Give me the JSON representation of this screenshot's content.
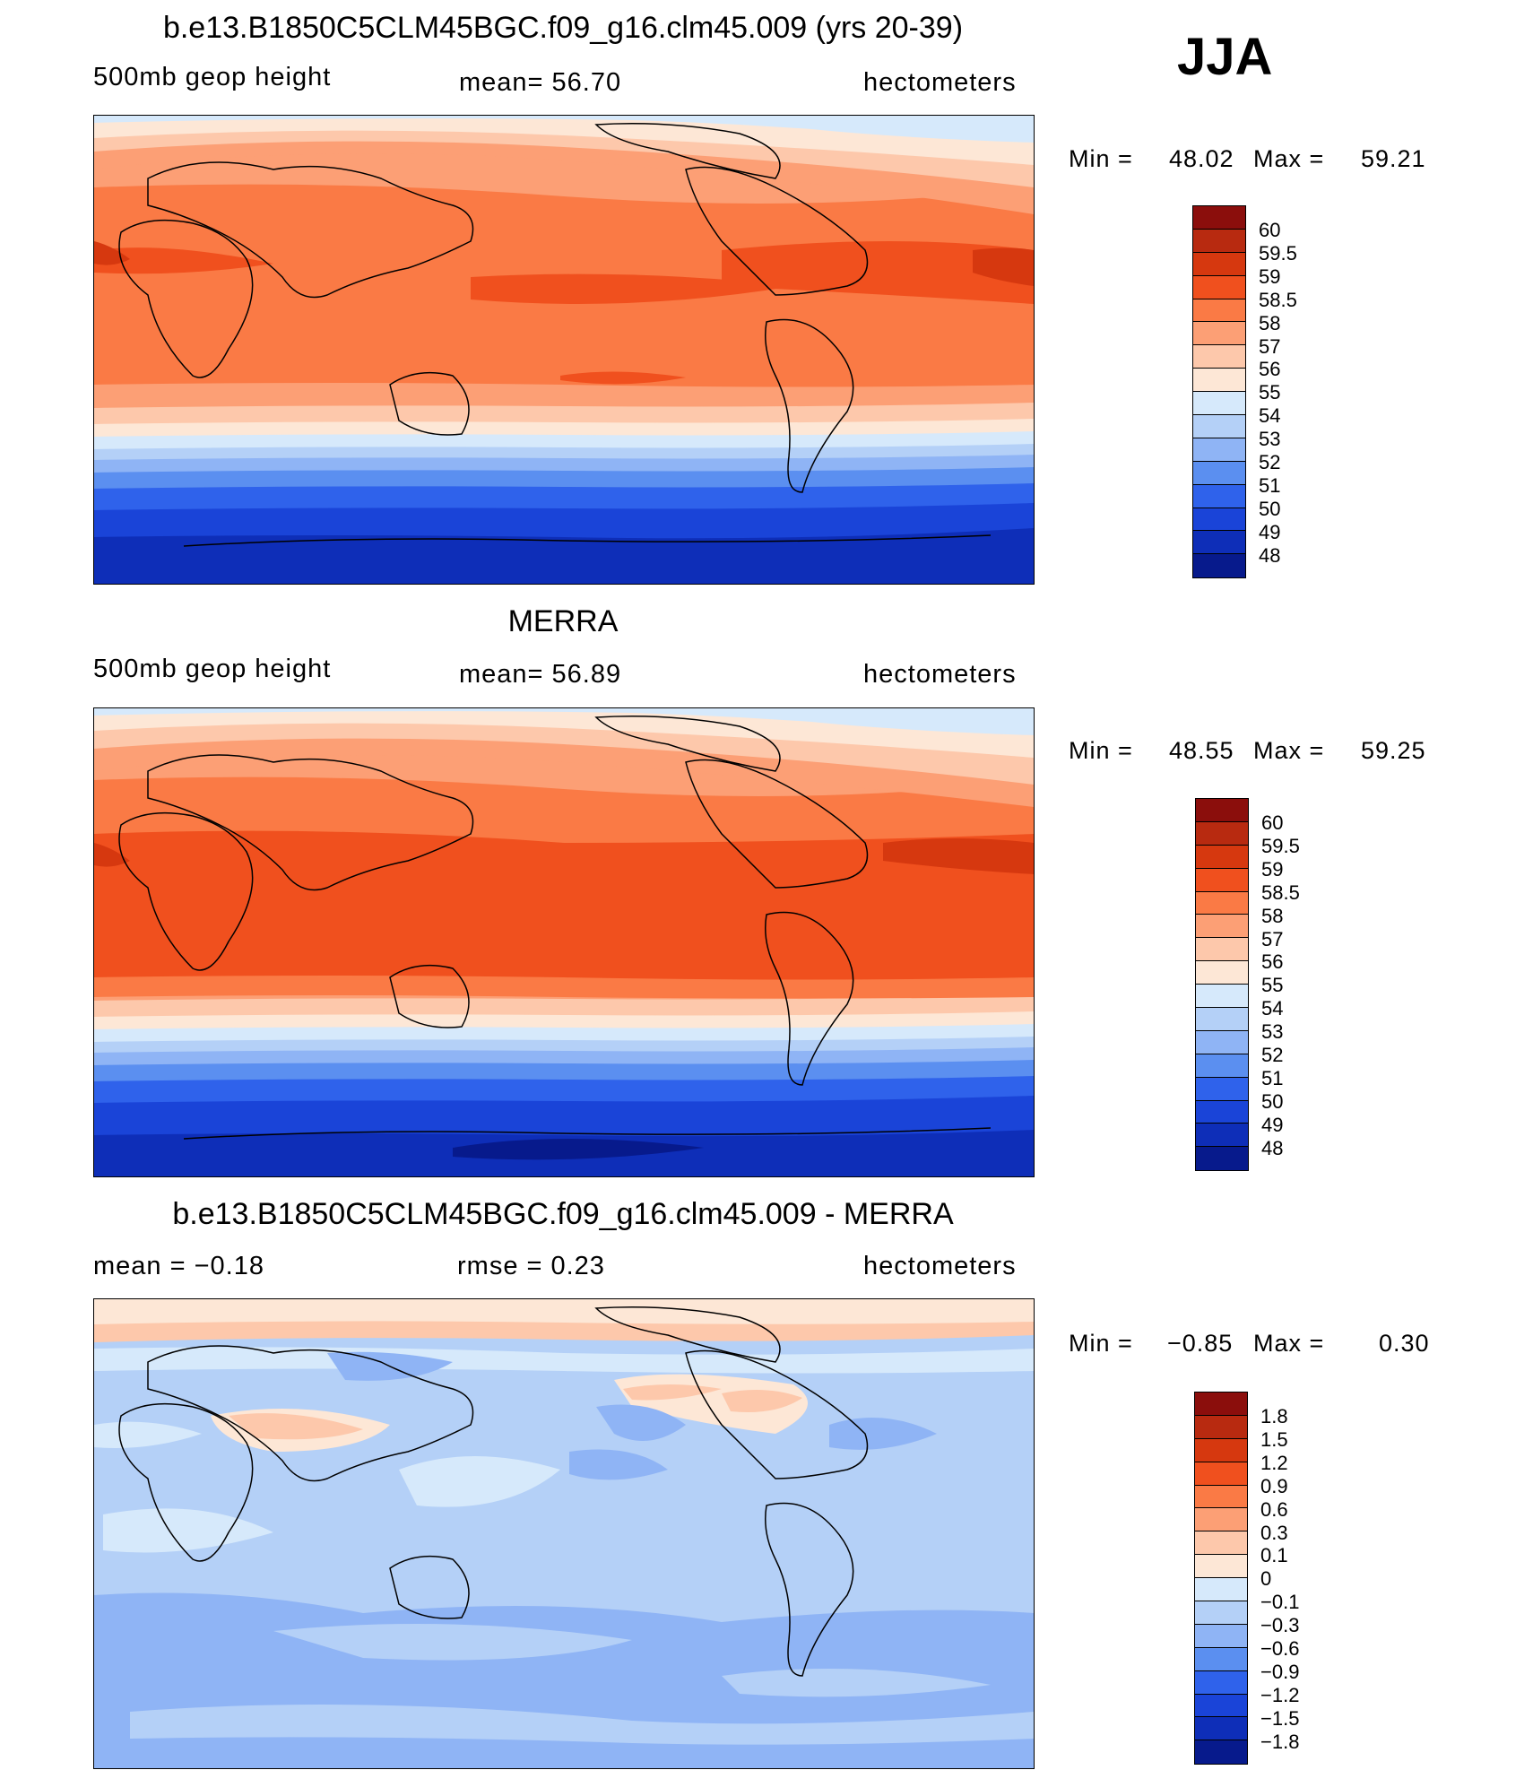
{
  "season": "JJA",
  "panels": [
    {
      "id": "model",
      "title": "b.e13.B1850C5CLM45BGC.f09_g16.clm45.009 (yrs 20-39)",
      "left_label": "500mb  geop  height",
      "center_label": "mean=   56.70",
      "right_label": "hectometers",
      "min_label": "Min  =",
      "min_value": "48.02",
      "max_label": "Max  =",
      "max_value": "59.21",
      "levels": [
        "60",
        "59.5",
        "59",
        "58.5",
        "58",
        "57",
        "56",
        "55",
        "54",
        "53",
        "52",
        "51",
        "50",
        "49",
        "48"
      ],
      "colors": [
        "#8b0e0c",
        "#b82a10",
        "#d6380f",
        "#f0501e",
        "#fa7a45",
        "#fc9f75",
        "#fdc8ab",
        "#fde7d6",
        "#d6e9fb",
        "#b4d0f7",
        "#8fb4f5",
        "#5b8ff0",
        "#2f62eb",
        "#1a44d8",
        "#0e2eb8",
        "#071a8c"
      ]
    },
    {
      "id": "obs",
      "title": "MERRA",
      "left_label": "500mb  geop  height",
      "center_label": "mean=   56.89",
      "right_label": "hectometers",
      "min_label": "Min  =",
      "min_value": "48.55",
      "max_label": "Max  =",
      "max_value": "59.25",
      "levels": [
        "60",
        "59.5",
        "59",
        "58.5",
        "58",
        "57",
        "56",
        "55",
        "54",
        "53",
        "52",
        "51",
        "50",
        "49",
        "48"
      ],
      "colors": [
        "#8b0e0c",
        "#b82a10",
        "#d6380f",
        "#f0501e",
        "#fa7a45",
        "#fc9f75",
        "#fdc8ab",
        "#fde7d6",
        "#d6e9fb",
        "#b4d0f7",
        "#8fb4f5",
        "#5b8ff0",
        "#2f62eb",
        "#1a44d8",
        "#0e2eb8",
        "#071a8c"
      ]
    },
    {
      "id": "diff",
      "title": "b.e13.B1850C5CLM45BGC.f09_g16.clm45.009 - MERRA",
      "left_label": "mean  =    −0.18",
      "center_label": "rmse  =     0.23",
      "right_label": "hectometers",
      "min_label": "Min  =",
      "min_value": "−0.85",
      "max_label": "Max  =",
      "max_value": "0.30",
      "levels": [
        "1.8",
        "1.5",
        "1.2",
        "0.9",
        "0.6",
        "0.3",
        "0.1",
        "0",
        "−0.1",
        "−0.3",
        "−0.6",
        "−0.9",
        "−1.2",
        "−1.5",
        "−1.8"
      ],
      "colors": [
        "#8b0e0c",
        "#b82a10",
        "#d6380f",
        "#f0501e",
        "#fa7a45",
        "#fc9f75",
        "#fdc8ab",
        "#fde7d6",
        "#d6e9fb",
        "#b4d0f7",
        "#8fb4f5",
        "#5b8ff0",
        "#2f62eb",
        "#1a44d8",
        "#0e2eb8",
        "#071a8c"
      ]
    }
  ]
}
